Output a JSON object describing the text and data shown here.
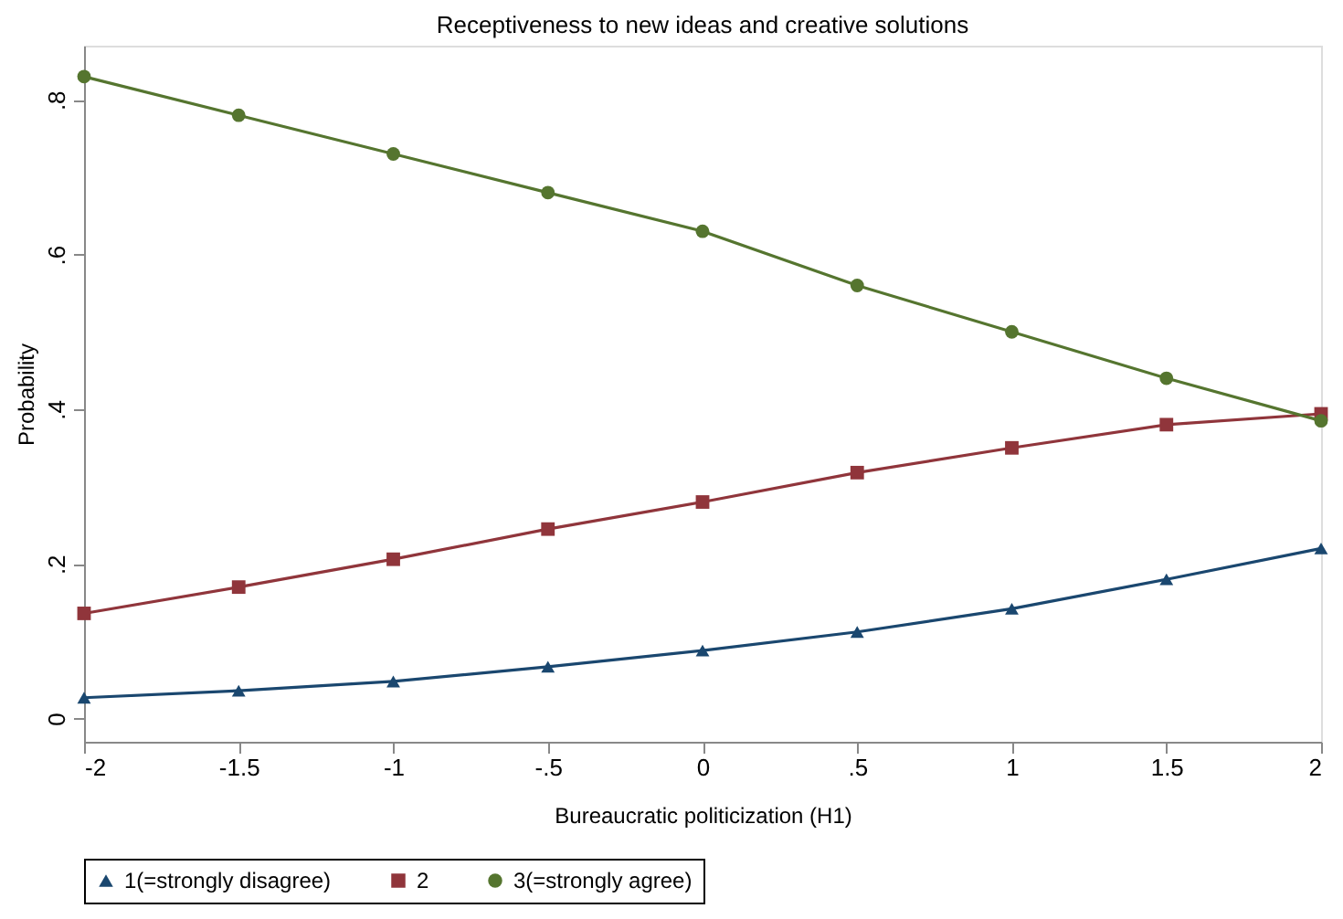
{
  "chart_data": {
    "type": "line",
    "title": "Receptiveness to new ideas and creative solutions",
    "xlabel": "Bureaucratic politicization (H1)",
    "ylabel": "Probability",
    "x": [
      -2,
      -1.5,
      -1,
      -0.5,
      0,
      0.5,
      1,
      1.5,
      2
    ],
    "series": [
      {
        "name": "1(=strongly disagree)",
        "color": "#1a476f",
        "marker": "triangle",
        "values": [
          0.027,
          0.036,
          0.048,
          0.067,
          0.088,
          0.112,
          0.142,
          0.18,
          0.22
        ]
      },
      {
        "name": "2",
        "color": "#90353b",
        "marker": "square",
        "values": [
          0.136,
          0.17,
          0.206,
          0.245,
          0.28,
          0.318,
          0.35,
          0.38,
          0.394
        ]
      },
      {
        "name": "3(=strongly agree)",
        "color": "#55752f",
        "marker": "circle",
        "values": [
          0.83,
          0.78,
          0.73,
          0.68,
          0.63,
          0.56,
          0.5,
          0.44,
          0.385
        ]
      }
    ],
    "xlim": [
      -2,
      2
    ],
    "ylim": [
      -0.03,
      0.87
    ],
    "xticks": [
      -2,
      -1.5,
      -1,
      {
        "value": -0.5,
        "label": "-.5"
      },
      0,
      {
        "value": 0.5,
        "label": ".5"
      },
      1,
      1.5,
      2
    ],
    "yticks": [
      0,
      {
        "value": 0.2,
        "label": ".2"
      },
      {
        "value": 0.4,
        "label": ".4"
      },
      {
        "value": 0.6,
        "label": ".6"
      },
      {
        "value": 0.8,
        "label": ".8"
      }
    ],
    "grid": false,
    "legend": "bottom",
    "line_style": "solid"
  }
}
